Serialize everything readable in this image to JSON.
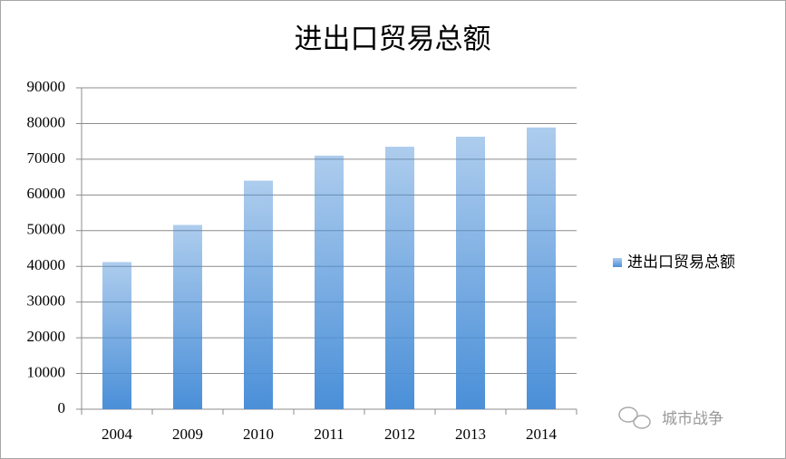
{
  "chart_data": {
    "type": "bar",
    "title": "进出口贸易总额",
    "categories": [
      "2004",
      "2009",
      "2010",
      "2011",
      "2012",
      "2013",
      "2014"
    ],
    "series": [
      {
        "name": "进出口贸易总额",
        "color": "#4a8fd8",
        "values": [
          41200,
          51600,
          64000,
          71000,
          73500,
          76300,
          78900
        ]
      }
    ],
    "ylim": [
      0,
      90000
    ],
    "yticks": [
      0,
      10000,
      20000,
      30000,
      40000,
      50000,
      60000,
      70000,
      80000,
      90000
    ],
    "grid": true,
    "legend": "right",
    "watermark": "城市战争"
  }
}
